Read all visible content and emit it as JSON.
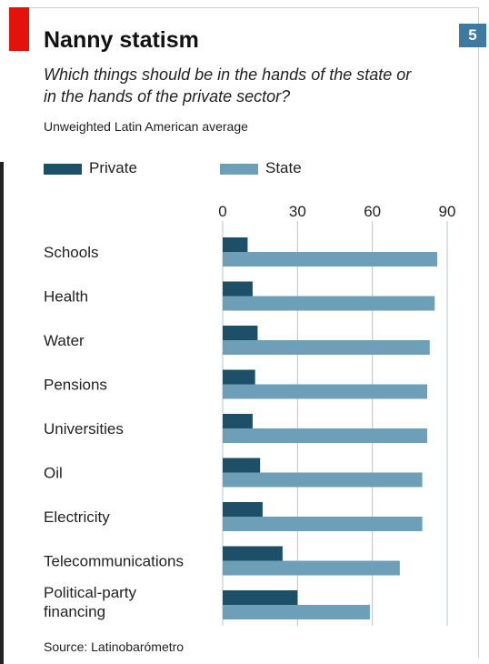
{
  "chart_data": {
    "type": "bar",
    "orientation": "horizontal",
    "title": "Nanny statism",
    "subtitle": "Which things should be in the hands of the state or in the hands of the private sector?",
    "note": "Unweighted Latin American average",
    "source": "Source: Latinobarómetro",
    "badge": "5",
    "categories": [
      "Schools",
      "Health",
      "Water",
      "Pensions",
      "Universities",
      "Oil",
      "Electricity",
      "Telecommunications",
      "Political-party financing"
    ],
    "series": [
      {
        "name": "Private",
        "color": "#1d4f68",
        "values": [
          10,
          12,
          14,
          13,
          12,
          15,
          16,
          24,
          30
        ]
      },
      {
        "name": "State",
        "color": "#6d9fb9",
        "values": [
          86,
          85,
          83,
          82,
          82,
          80,
          80,
          71,
          59
        ]
      }
    ],
    "xlim": [
      0,
      90
    ],
    "ticks": [
      "0",
      "30",
      "60",
      "90"
    ],
    "tick_values": [
      0,
      30,
      60,
      90
    ],
    "grid": true,
    "legend_placement": "top-left"
  }
}
